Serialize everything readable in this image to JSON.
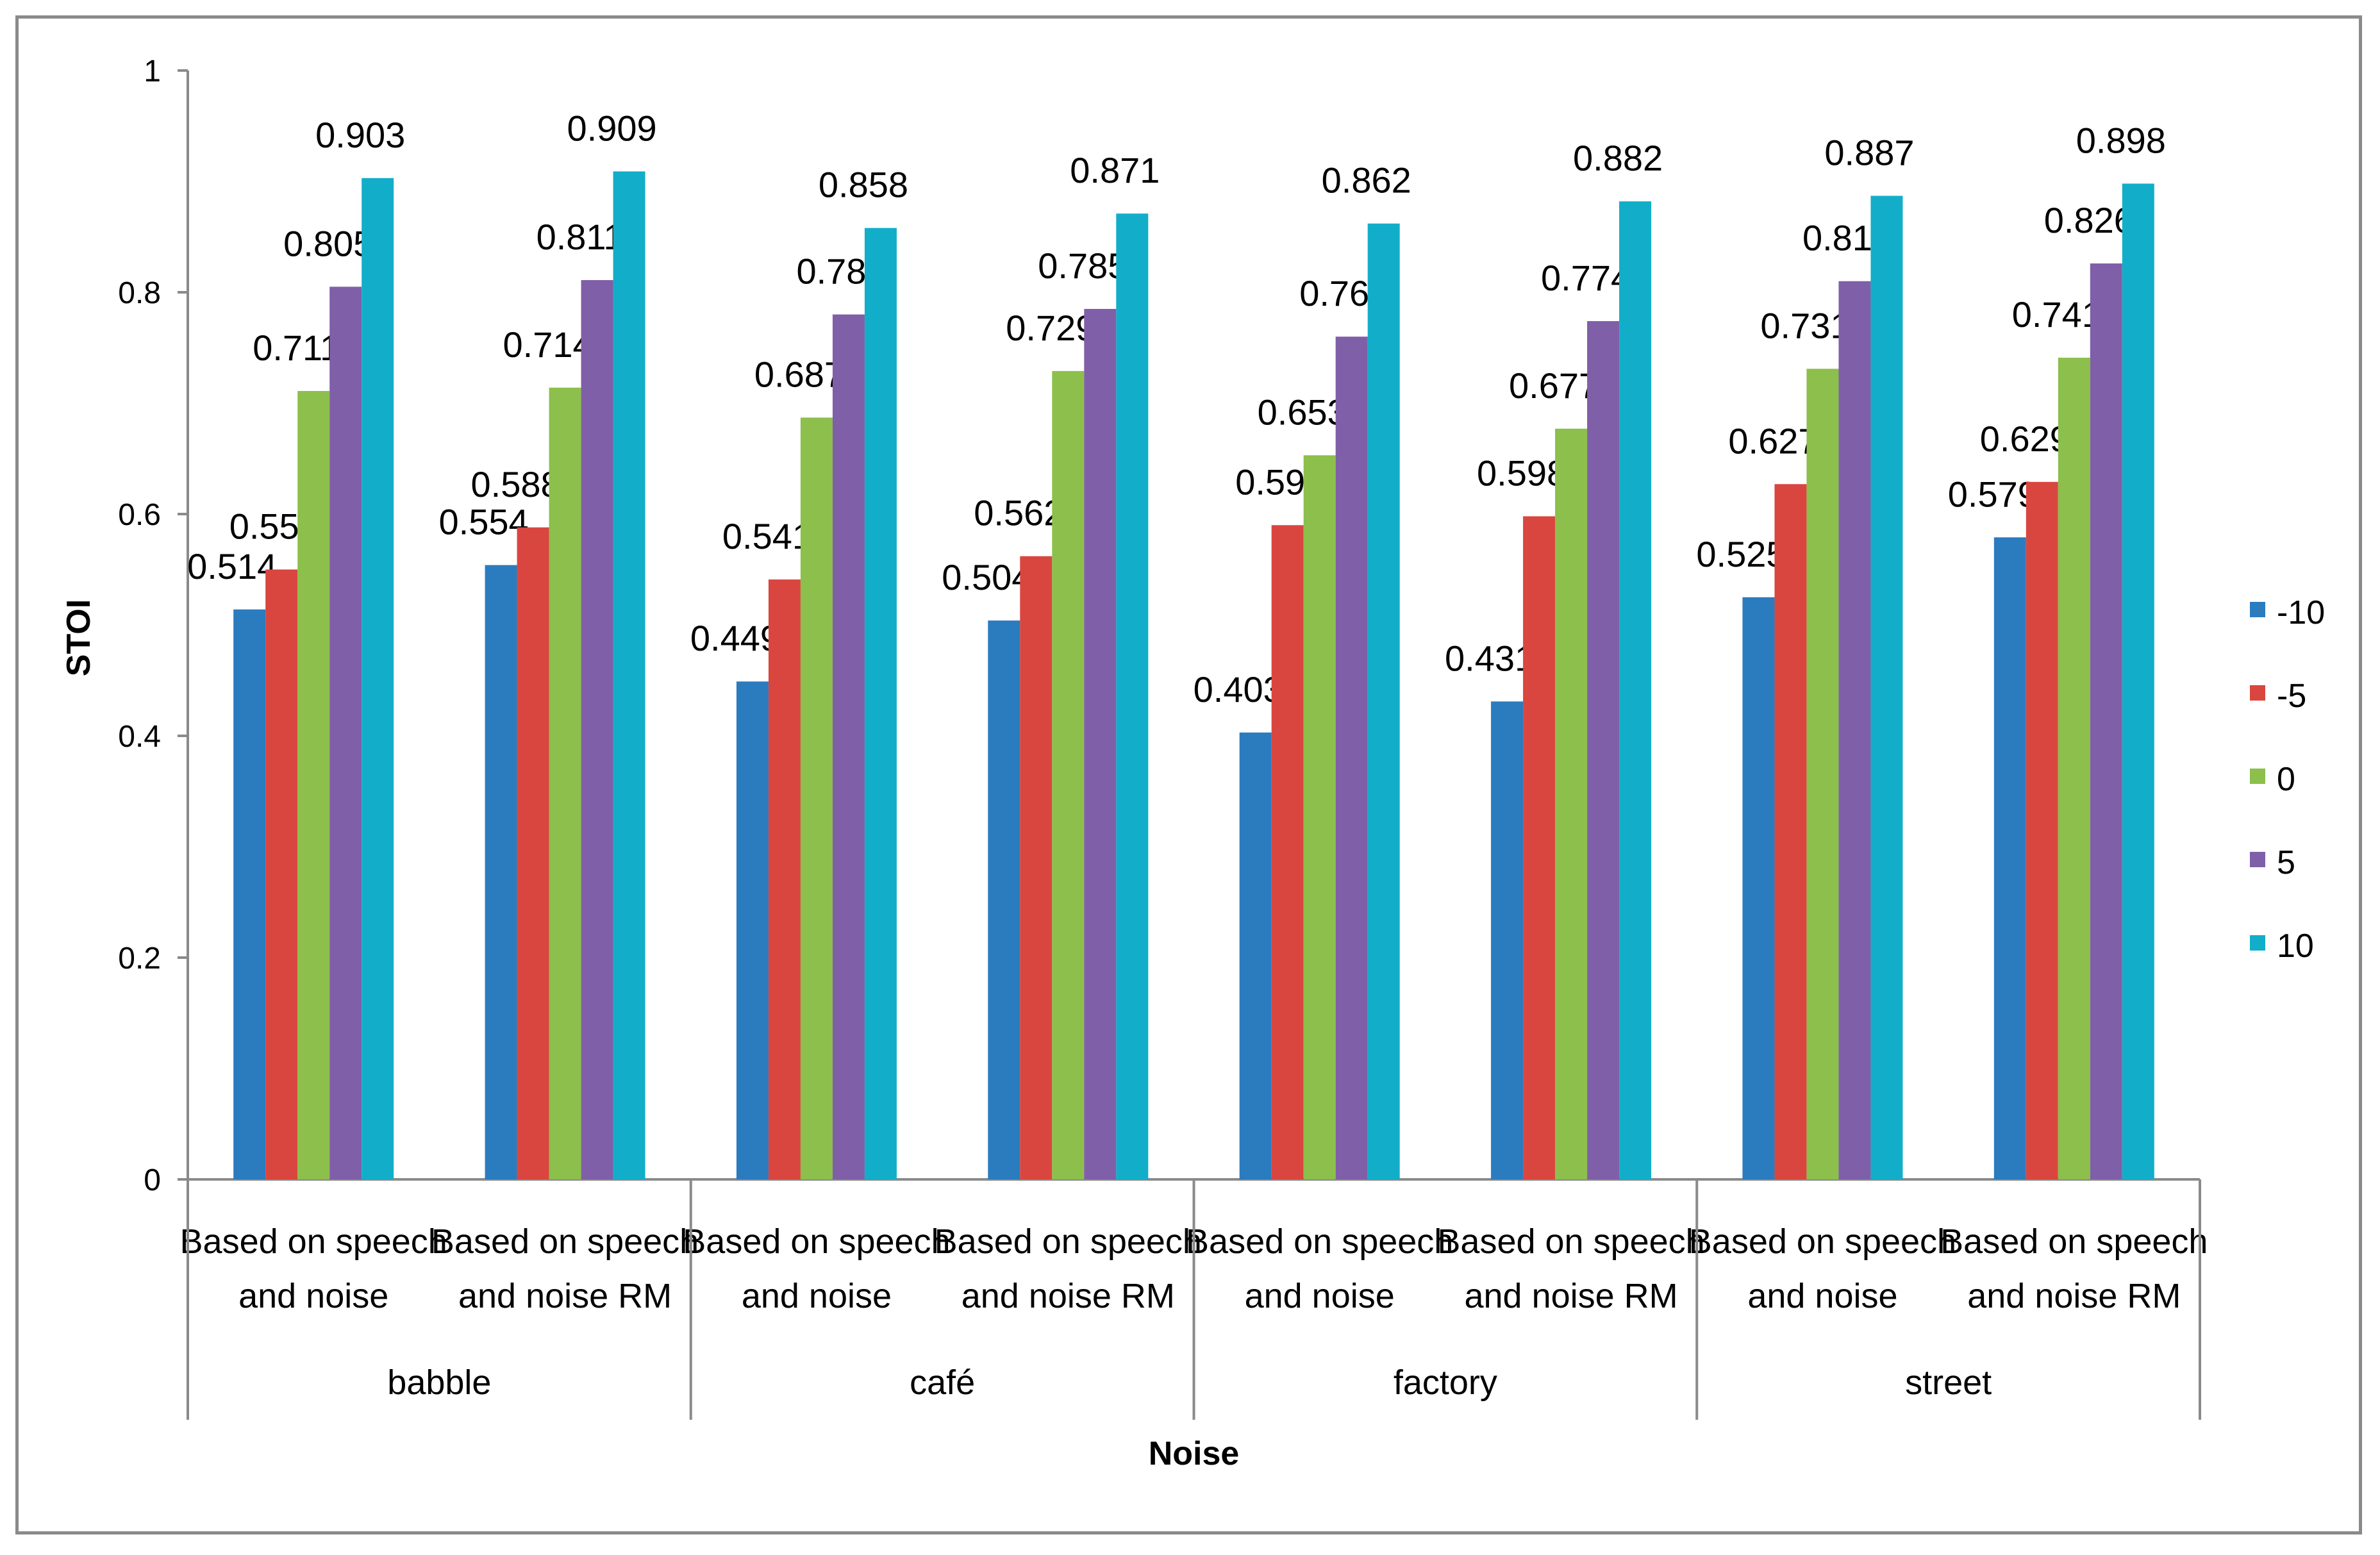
{
  "chart_data": {
    "type": "bar",
    "title": "",
    "xlabel": "Noise",
    "ylabel": "STOI",
    "ylim": [
      0,
      1
    ],
    "yticks": [
      "0",
      "0.2",
      "0.4",
      "0.6",
      "0.8",
      "1"
    ],
    "legend_position": "right",
    "groups": [
      {
        "label": "babble",
        "categories": [
          "Based on speech and noise",
          "Based on speech and noise RM"
        ]
      },
      {
        "label": "café",
        "categories": [
          "Based on speech and noise",
          "Based on speech and noise RM"
        ]
      },
      {
        "label": "factory",
        "categories": [
          "Based on speech and noise",
          "Based on speech and noise RM"
        ]
      },
      {
        "label": "street",
        "categories": [
          "Based on speech and noise",
          "Based on speech and noise RM"
        ]
      }
    ],
    "category_lines": [
      [
        "Based on speech",
        "and noise"
      ],
      [
        "Based on speech",
        "and noise RM"
      ]
    ],
    "series": [
      {
        "name": "-10",
        "color": "#2b7bbf",
        "values": [
          0.514,
          0.554,
          0.449,
          0.504,
          0.403,
          0.431,
          0.525,
          0.579
        ]
      },
      {
        "name": "-5",
        "color": "#d9463f",
        "values": [
          0.55,
          0.588,
          0.541,
          0.562,
          0.59,
          0.598,
          0.627,
          0.629
        ]
      },
      {
        "name": "0",
        "color": "#8cbf4b",
        "values": [
          0.711,
          0.714,
          0.687,
          0.729,
          0.653,
          0.677,
          0.731,
          0.741
        ]
      },
      {
        "name": "5",
        "color": "#7f5fa8",
        "values": [
          0.805,
          0.811,
          0.78,
          0.785,
          0.76,
          0.774,
          0.81,
          0.826
        ]
      },
      {
        "name": "10",
        "color": "#12aec9",
        "values": [
          0.903,
          0.909,
          0.858,
          0.871,
          0.862,
          0.882,
          0.887,
          0.898
        ]
      }
    ]
  }
}
